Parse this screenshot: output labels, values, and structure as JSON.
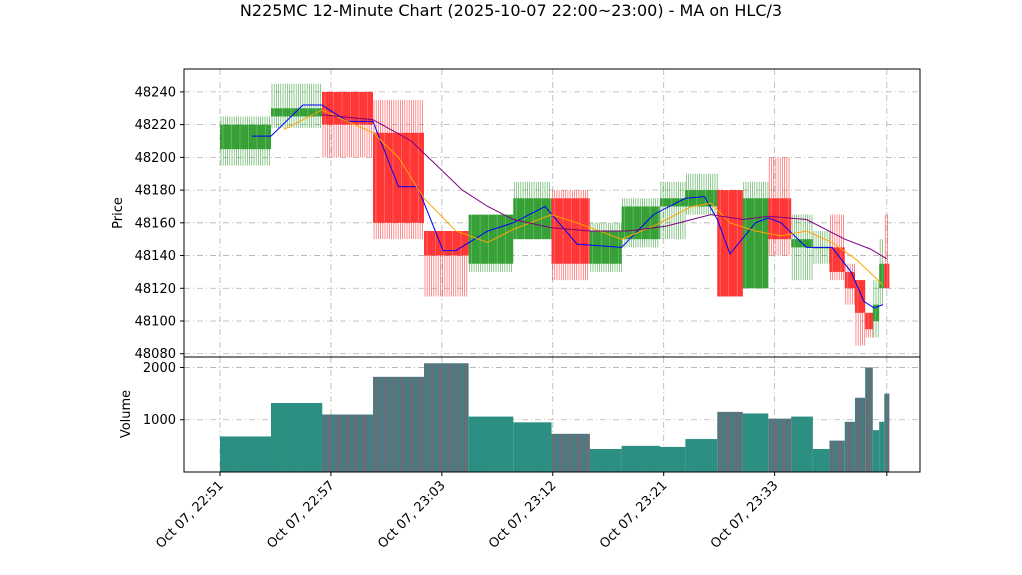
{
  "chart_data": {
    "type": "candlestick",
    "title": "N225MC 12-Minute Chart (2025-10-07 22:00~23:00) - MA on HLC/3",
    "ylabel_price": "Price",
    "ylabel_volume": "Volume",
    "price_ylim": [
      48078,
      48254
    ],
    "volume_ylim": [
      0,
      2200
    ],
    "grid": true,
    "price_ticks": [
      48080,
      48100,
      48120,
      48140,
      48160,
      48180,
      48200,
      48220,
      48240
    ],
    "volume_ticks": [
      1000,
      2000
    ],
    "x_tick_labels": [
      "Oct 07, 22:51",
      "Oct 07, 22:57",
      "Oct 07, 23:03",
      "Oct 07, 23:12",
      "Oct 07, 23:21",
      "Oct 07, 23:33"
    ],
    "up_color": "#2a9a2a",
    "down_color": "#ff2a2a",
    "volume_bar_color": "#2e8b8b",
    "ma_colors": [
      "#0000ff",
      "#ffa500",
      "#800080"
    ],
    "candles": [
      {
        "start": 0,
        "end": 4,
        "open": 48205,
        "high": 48225,
        "low": 48195,
        "close": 48220,
        "volume": 680
      },
      {
        "start": 4,
        "end": 8,
        "open": 48225,
        "high": 48245,
        "low": 48218,
        "close": 48230,
        "volume": 1320
      },
      {
        "start": 8,
        "end": 12,
        "open": 48240,
        "high": 48240,
        "low": 48200,
        "close": 48220,
        "volume": 1100
      },
      {
        "start": 12,
        "end": 16,
        "open": 48215,
        "high": 48235,
        "low": 48150,
        "close": 48160,
        "volume": 1820
      },
      {
        "start": 16,
        "end": 19.5,
        "open": 48155,
        "high": 48155,
        "low": 48115,
        "close": 48140,
        "volume": 2080
      },
      {
        "start": 19.5,
        "end": 23,
        "open": 48135,
        "high": 48165,
        "low": 48130,
        "close": 48165,
        "volume": 1060
      },
      {
        "start": 23,
        "end": 26,
        "open": 48150,
        "high": 48185,
        "low": 48150,
        "close": 48175,
        "volume": 950
      },
      {
        "start": 26,
        "end": 29,
        "open": 48175,
        "high": 48180,
        "low": 48125,
        "close": 48135,
        "volume": 730
      },
      {
        "start": 29,
        "end": 31.5,
        "open": 48135,
        "high": 48160,
        "low": 48130,
        "close": 48155,
        "volume": 440
      },
      {
        "start": 31.5,
        "end": 34.5,
        "open": 48150,
        "high": 48175,
        "low": 48145,
        "close": 48170,
        "volume": 500
      },
      {
        "start": 34.5,
        "end": 36.5,
        "open": 48170,
        "high": 48185,
        "low": 48150,
        "close": 48175,
        "volume": 480
      },
      {
        "start": 36.5,
        "end": 39,
        "open": 48170,
        "high": 48190,
        "low": 48165,
        "close": 48180,
        "volume": 630
      },
      {
        "start": 39,
        "end": 41,
        "open": 48180,
        "high": 48180,
        "low": 48115,
        "close": 48115,
        "volume": 1150
      },
      {
        "start": 41,
        "end": 43,
        "open": 48120,
        "high": 48185,
        "low": 48120,
        "close": 48175,
        "volume": 1120
      },
      {
        "start": 43,
        "end": 44.8,
        "open": 48175,
        "high": 48200,
        "low": 48140,
        "close": 48150,
        "volume": 1020
      },
      {
        "start": 44.8,
        "end": 46.5,
        "open": 48145,
        "high": 48165,
        "low": 48125,
        "close": 48150,
        "volume": 1060
      },
      {
        "start": 46.5,
        "end": 47.8,
        "open": 48145,
        "high": 48155,
        "low": 48135,
        "close": 48145,
        "volume": 440
      },
      {
        "start": 47.8,
        "end": 49,
        "open": 48145,
        "high": 48165,
        "low": 48125,
        "close": 48130,
        "volume": 600
      },
      {
        "start": 49,
        "end": 49.8,
        "open": 48130,
        "high": 48135,
        "low": 48110,
        "close": 48120,
        "volume": 960
      },
      {
        "start": 49.8,
        "end": 50.6,
        "open": 48125,
        "high": 48125,
        "low": 48085,
        "close": 48105,
        "volume": 1420
      },
      {
        "start": 50.6,
        "end": 51.2,
        "open": 48105,
        "high": 48105,
        "low": 48090,
        "close": 48095,
        "volume": 2000
      },
      {
        "start": 51.2,
        "end": 51.7,
        "open": 48100,
        "high": 48125,
        "low": 48090,
        "close": 48110,
        "volume": 800
      },
      {
        "start": 51.7,
        "end": 52.1,
        "open": 48120,
        "high": 48150,
        "low": 48110,
        "close": 48135,
        "volume": 960
      },
      {
        "start": 52.1,
        "end": 52.5,
        "open": 48135,
        "high": 48165,
        "low": 48120,
        "close": 48120,
        "volume": 1500
      }
    ],
    "ma_series": [
      {
        "points": [
          [
            2.5,
            48213
          ],
          [
            4,
            48213
          ],
          [
            6.5,
            48232
          ],
          [
            8,
            48232
          ],
          [
            10,
            48222
          ],
          [
            12,
            48222
          ],
          [
            14,
            48182
          ],
          [
            15.5,
            48182
          ],
          [
            17.5,
            48143
          ],
          [
            18.5,
            48143
          ],
          [
            21,
            48155
          ],
          [
            23,
            48160
          ],
          [
            25.5,
            48170
          ],
          [
            28,
            48147
          ],
          [
            31.5,
            48145
          ],
          [
            34,
            48165
          ],
          [
            36.5,
            48175
          ],
          [
            38,
            48176
          ],
          [
            39,
            48162
          ],
          [
            40,
            48141
          ],
          [
            42,
            48160
          ],
          [
            43,
            48163
          ],
          [
            44,
            48160
          ],
          [
            46,
            48145
          ],
          [
            48,
            48145
          ],
          [
            49.5,
            48130
          ],
          [
            50.5,
            48112
          ],
          [
            51.3,
            48108
          ],
          [
            52,
            48110
          ]
        ]
      },
      {
        "points": [
          [
            5,
            48217
          ],
          [
            8,
            48229
          ],
          [
            10,
            48222
          ],
          [
            12,
            48215
          ],
          [
            14,
            48200
          ],
          [
            16,
            48175
          ],
          [
            18.5,
            48155
          ],
          [
            21,
            48148
          ],
          [
            23,
            48156
          ],
          [
            26,
            48165
          ],
          [
            28,
            48160
          ],
          [
            31.5,
            48150
          ],
          [
            34,
            48158
          ],
          [
            37,
            48170
          ],
          [
            38.5,
            48172
          ],
          [
            40,
            48160
          ],
          [
            42,
            48155
          ],
          [
            44,
            48152
          ],
          [
            46,
            48155
          ],
          [
            48,
            48148
          ],
          [
            50,
            48137
          ],
          [
            52,
            48122
          ]
        ]
      },
      {
        "points": [
          [
            8,
            48226
          ],
          [
            12,
            48223
          ],
          [
            15,
            48210
          ],
          [
            17,
            48195
          ],
          [
            19,
            48180
          ],
          [
            21,
            48170
          ],
          [
            23,
            48162
          ],
          [
            26,
            48157
          ],
          [
            29,
            48155
          ],
          [
            32,
            48155
          ],
          [
            35,
            48158
          ],
          [
            37,
            48162
          ],
          [
            38.5,
            48165
          ],
          [
            41,
            48162
          ],
          [
            43,
            48164
          ],
          [
            46,
            48162
          ],
          [
            49,
            48150
          ],
          [
            51,
            48144
          ],
          [
            52.3,
            48138
          ]
        ]
      }
    ]
  }
}
